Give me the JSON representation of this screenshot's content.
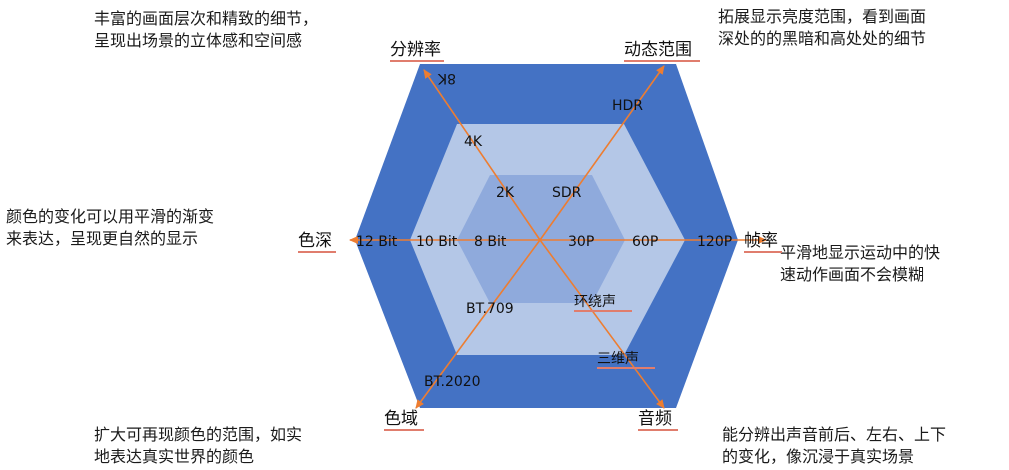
{
  "colors": {
    "outer_hex": "#4472c4",
    "mid_hex": "#b4c7e7",
    "inner_hex": "#8faadc",
    "arrow": "#ed7d31",
    "underline": "#e07d6d"
  },
  "axes": {
    "resolution": {
      "label": "分辨率",
      "ticks": [
        "2K",
        "4K",
        "8K"
      ]
    },
    "dynamic_range": {
      "label": "动态范围",
      "ticks": [
        "SDR",
        "HDR"
      ]
    },
    "frame_rate": {
      "label": "帧率",
      "ticks": [
        "30P",
        "60P",
        "120P"
      ]
    },
    "audio": {
      "label": "音频",
      "ticks": [
        "环绕声",
        "三维声"
      ]
    },
    "color_gamut": {
      "label": "色域",
      "ticks": [
        "BT.709",
        "BT.2020"
      ]
    },
    "color_depth": {
      "label": "色深",
      "ticks": [
        "8 Bit",
        "10 Bit",
        "12 Bit"
      ]
    }
  },
  "descriptions": {
    "resolution": [
      "丰富的画面层次和精致的细节，",
      "呈现出场景的立体感和空间感"
    ],
    "dynamic_range": [
      "拓展显示亮度范围，看到画面",
      "深处的的黑暗和高处处的细节"
    ],
    "color_depth": [
      "颜色的变化可以用平滑的渐变",
      "来表达，呈现更自然的显示"
    ],
    "frame_rate": [
      "平滑地显示运动中的快",
      "速动作画面不会模糊"
    ],
    "color_gamut": [
      "扩大可再现颜色的范围，如实",
      "地表达真实世界的颜色"
    ],
    "audio": [
      "能分辨出声音前后、左右、上下",
      "的变化，像沉浸于真实场景"
    ]
  }
}
